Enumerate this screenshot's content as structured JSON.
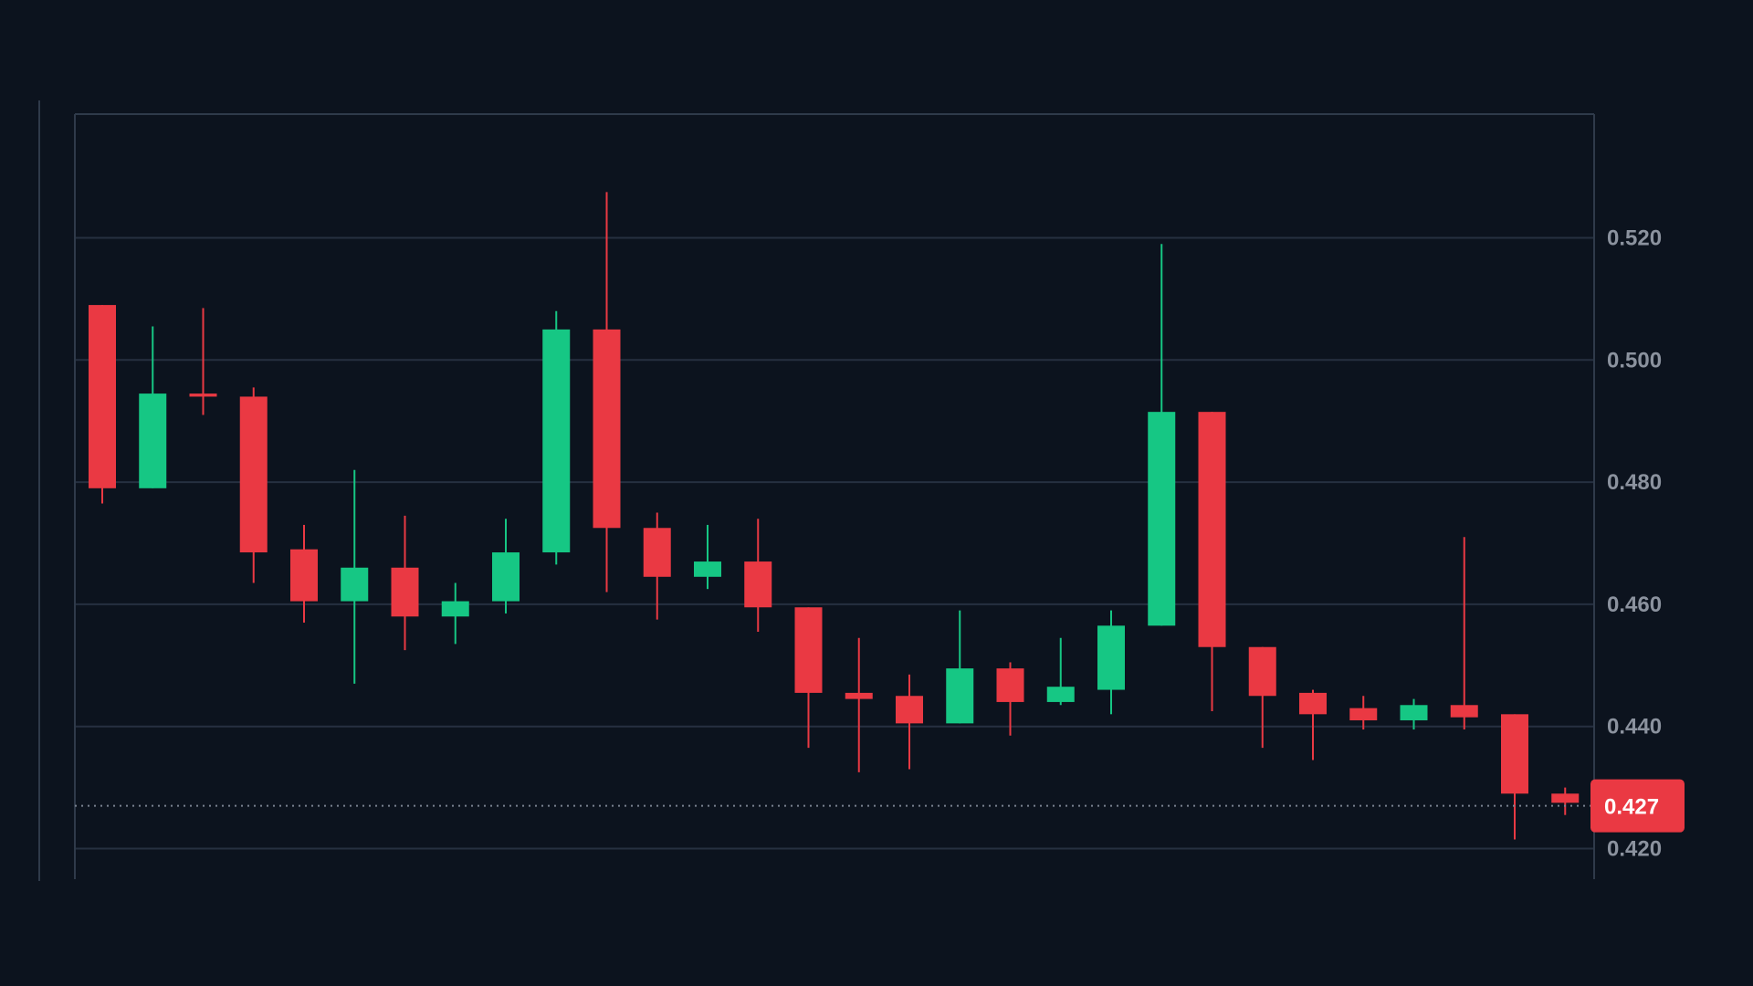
{
  "colors": {
    "background": "#0c131e",
    "grid": "#263040",
    "border": "#2f3a4a",
    "axis_text": "#8b929e",
    "up": "#16c784",
    "down": "#ea3943",
    "price_line": "#7a8290"
  },
  "chart_data": {
    "type": "candlestick",
    "title": "",
    "xlabel": "",
    "ylabel": "",
    "ylim": [
      0.415,
      0.54
    ],
    "y_ticks": [
      "0.420",
      "0.440",
      "0.460",
      "0.480",
      "0.500",
      "0.520"
    ],
    "grid": true,
    "last_price": 0.427,
    "last_price_label": "0.427",
    "candles": [
      {
        "open": 0.509,
        "high": 0.509,
        "low": 0.4765,
        "close": 0.479
      },
      {
        "open": 0.479,
        "high": 0.5055,
        "low": 0.479,
        "close": 0.4945
      },
      {
        "open": 0.4945,
        "high": 0.5085,
        "low": 0.491,
        "close": 0.494
      },
      {
        "open": 0.494,
        "high": 0.4955,
        "low": 0.4635,
        "close": 0.4685
      },
      {
        "open": 0.469,
        "high": 0.473,
        "low": 0.457,
        "close": 0.4605
      },
      {
        "open": 0.4605,
        "high": 0.482,
        "low": 0.447,
        "close": 0.466
      },
      {
        "open": 0.466,
        "high": 0.4745,
        "low": 0.4525,
        "close": 0.458
      },
      {
        "open": 0.458,
        "high": 0.4635,
        "low": 0.4535,
        "close": 0.4605
      },
      {
        "open": 0.4605,
        "high": 0.474,
        "low": 0.4585,
        "close": 0.4685
      },
      {
        "open": 0.4685,
        "high": 0.508,
        "low": 0.4665,
        "close": 0.505
      },
      {
        "open": 0.505,
        "high": 0.5275,
        "low": 0.462,
        "close": 0.4725
      },
      {
        "open": 0.4725,
        "high": 0.475,
        "low": 0.4575,
        "close": 0.4645
      },
      {
        "open": 0.4645,
        "high": 0.473,
        "low": 0.4625,
        "close": 0.467
      },
      {
        "open": 0.467,
        "high": 0.474,
        "low": 0.4555,
        "close": 0.4595
      },
      {
        "open": 0.4595,
        "high": 0.4595,
        "low": 0.4365,
        "close": 0.4455
      },
      {
        "open": 0.4455,
        "high": 0.4545,
        "low": 0.4325,
        "close": 0.4445
      },
      {
        "open": 0.445,
        "high": 0.4485,
        "low": 0.433,
        "close": 0.4405
      },
      {
        "open": 0.4405,
        "high": 0.459,
        "low": 0.4405,
        "close": 0.4495
      },
      {
        "open": 0.4495,
        "high": 0.4505,
        "low": 0.4385,
        "close": 0.444
      },
      {
        "open": 0.444,
        "high": 0.4545,
        "low": 0.4435,
        "close": 0.4465
      },
      {
        "open": 0.446,
        "high": 0.459,
        "low": 0.442,
        "close": 0.4565
      },
      {
        "open": 0.4565,
        "high": 0.519,
        "low": 0.4565,
        "close": 0.4915
      },
      {
        "open": 0.4915,
        "high": 0.4915,
        "low": 0.4425,
        "close": 0.453
      },
      {
        "open": 0.453,
        "high": 0.453,
        "low": 0.4365,
        "close": 0.445
      },
      {
        "open": 0.4455,
        "high": 0.446,
        "low": 0.4345,
        "close": 0.442
      },
      {
        "open": 0.443,
        "high": 0.445,
        "low": 0.4395,
        "close": 0.441
      },
      {
        "open": 0.441,
        "high": 0.4445,
        "low": 0.4395,
        "close": 0.4435
      },
      {
        "open": 0.4435,
        "high": 0.471,
        "low": 0.4395,
        "close": 0.4415
      },
      {
        "open": 0.442,
        "high": 0.442,
        "low": 0.4215,
        "close": 0.429
      },
      {
        "open": 0.429,
        "high": 0.43,
        "low": 0.4255,
        "close": 0.4275
      }
    ]
  }
}
